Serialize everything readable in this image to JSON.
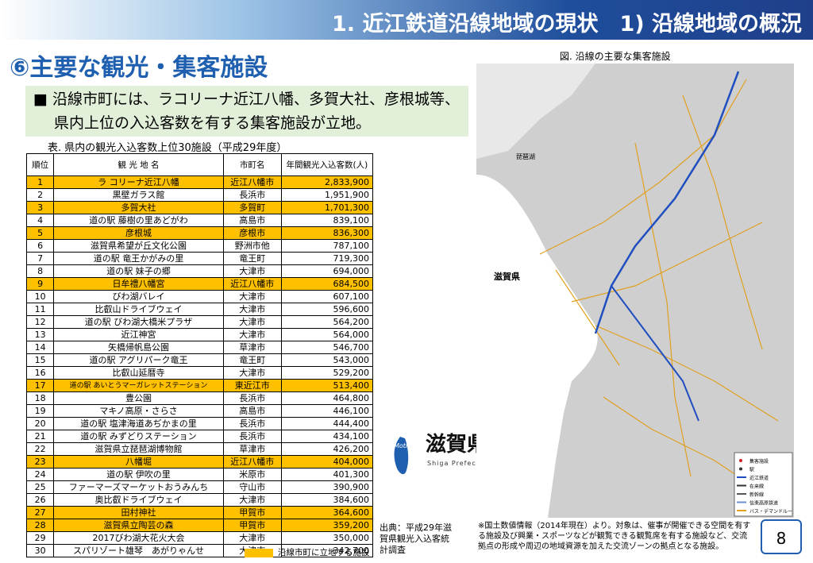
{
  "header": {
    "title": "1. 近江鉄道沿線地域の現状　1) 沿線地域の概況"
  },
  "section": {
    "title": "⑥主要な観光・集客施設",
    "bullet": "沿線市町には、ラコリーナ近江八幡、多賀大社、彦根城等、県内上位の入込客数を有する集客施設が立地。"
  },
  "table": {
    "caption": "表. 県内の観光入込客数上位30施設（平成29年度）",
    "columns": [
      "順位",
      "観 光 地 名",
      "市町名",
      "年間観光入込客数(人)"
    ],
    "highlight_color": "#ffc000",
    "rows": [
      {
        "cells": [
          "1",
          "ラ コリーナ近江八幡",
          "近江八幡市",
          "2,833,900"
        ],
        "highlight": true
      },
      {
        "cells": [
          "2",
          "黒壁ガラス館",
          "長浜市",
          "1,951,900"
        ],
        "highlight": false
      },
      {
        "cells": [
          "3",
          "多賀大社",
          "多賀町",
          "1,701,300"
        ],
        "highlight": true
      },
      {
        "cells": [
          "4",
          "道の駅 藤樹の里あどがわ",
          "高島市",
          "839,100"
        ],
        "highlight": false
      },
      {
        "cells": [
          "5",
          "彦根城",
          "彦根市",
          "836,300"
        ],
        "highlight": true
      },
      {
        "cells": [
          "6",
          "滋賀県希望が丘文化公園",
          "野洲市他",
          "787,100"
        ],
        "highlight": false
      },
      {
        "cells": [
          "7",
          "道の駅 竜王かがみの里",
          "竜王町",
          "719,300"
        ],
        "highlight": false
      },
      {
        "cells": [
          "8",
          "道の駅 妹子の郷",
          "大津市",
          "694,000"
        ],
        "highlight": false
      },
      {
        "cells": [
          "9",
          "日牟禮八幡宮",
          "近江八幡市",
          "684,500"
        ],
        "highlight": true
      },
      {
        "cells": [
          "10",
          "びわ湖バレイ",
          "大津市",
          "607,100"
        ],
        "highlight": false
      },
      {
        "cells": [
          "11",
          "比叡山ドライブウェイ",
          "大津市",
          "596,600"
        ],
        "highlight": false
      },
      {
        "cells": [
          "12",
          "道の駅 びわ湖大橋米プラザ",
          "大津市",
          "564,200"
        ],
        "highlight": false
      },
      {
        "cells": [
          "13",
          "近江神宮",
          "大津市",
          "564,000"
        ],
        "highlight": false
      },
      {
        "cells": [
          "14",
          "矢橋帰帆島公園",
          "草津市",
          "546,700"
        ],
        "highlight": false
      },
      {
        "cells": [
          "15",
          "道の駅 アグリパーク竜王",
          "竜王町",
          "543,000"
        ],
        "highlight": false
      },
      {
        "cells": [
          "16",
          "比叡山延暦寺",
          "大津市",
          "529,200"
        ],
        "highlight": false
      },
      {
        "cells": [
          "17",
          "道の駅 あいとうマーガレットステーション",
          "東近江市",
          "513,400"
        ],
        "highlight": true
      },
      {
        "cells": [
          "18",
          "豊公園",
          "長浜市",
          "464,800"
        ],
        "highlight": false
      },
      {
        "cells": [
          "19",
          "マキノ高原・さらさ",
          "高島市",
          "446,100"
        ],
        "highlight": false
      },
      {
        "cells": [
          "20",
          "道の駅 塩津海道あぢかまの里",
          "長浜市",
          "444,400"
        ],
        "highlight": false
      },
      {
        "cells": [
          "21",
          "道の駅 みずどりステーション",
          "長浜市",
          "434,100"
        ],
        "highlight": false
      },
      {
        "cells": [
          "22",
          "滋賀県立琵琶湖博物館",
          "草津市",
          "426,200"
        ],
        "highlight": false
      },
      {
        "cells": [
          "23",
          "八幡堀",
          "近江八幡市",
          "404,000"
        ],
        "highlight": true
      },
      {
        "cells": [
          "24",
          "道の駅 伊吹の里",
          "米原市",
          "401,300"
        ],
        "highlight": false
      },
      {
        "cells": [
          "25",
          "ファーマーズマーケットおうみんち",
          "守山市",
          "390,900"
        ],
        "highlight": false
      },
      {
        "cells": [
          "26",
          "奥比叡ドライブウェイ",
          "大津市",
          "384,600"
        ],
        "highlight": false
      },
      {
        "cells": [
          "27",
          "田村神社",
          "甲賀市",
          "364,600"
        ],
        "highlight": true
      },
      {
        "cells": [
          "28",
          "滋賀県立陶芸の森",
          "甲賀市",
          "359,200"
        ],
        "highlight": true
      },
      {
        "cells": [
          "29",
          "2017びわ湖大花火大会",
          "大津市",
          "350,000"
        ],
        "highlight": false
      },
      {
        "cells": [
          "30",
          "スパリゾート雄琴　あがりゃんせ",
          "大津市",
          "342,700"
        ],
        "highlight": false
      }
    ],
    "legend": "沿線市町に立地する施設",
    "source": "出典：平成29年滋賀県観光入込客統計調査"
  },
  "logo": {
    "mark": "Mother Lake",
    "name": "滋賀県",
    "english": "Shiga Prefecture"
  },
  "map": {
    "caption": "図. 沿線の主要な集客施設",
    "labels": [
      "滋賀県",
      "琵琶湖"
    ],
    "legend": [
      "集客施設",
      "駅",
      "近江鉄道",
      "在来線",
      "新幹線",
      "信楽高原鉄道",
      "バス・デマンドルート"
    ],
    "note": "※国土数値情報（2014年現在）より。対象は、催事が開催できる空間を有する施設及び興業・スポーツなどが観覧できる観覧席を有する施設など、交流拠点の形成や周辺の地域資源を加えた交流ゾーンの拠点となる施設。"
  },
  "page": {
    "number": "8"
  }
}
